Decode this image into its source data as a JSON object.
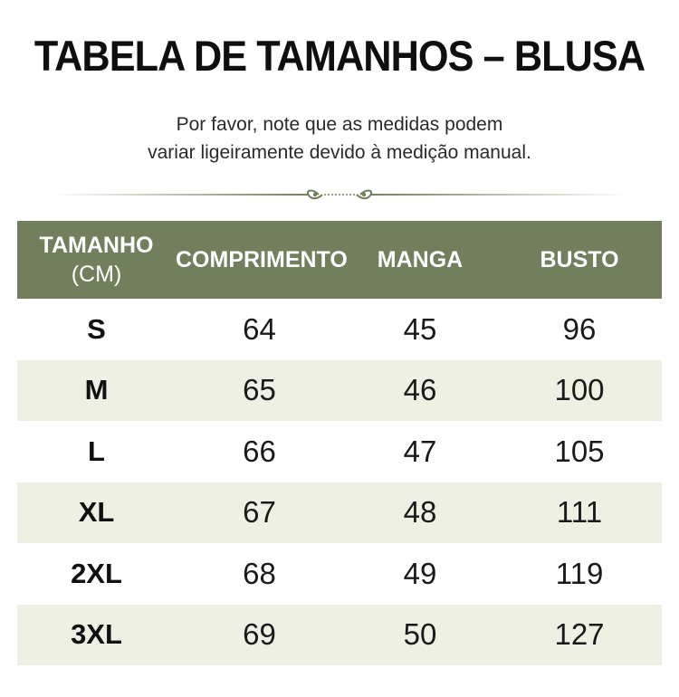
{
  "title": "TABELA DE TAMANHOS – BLUSA",
  "note": {
    "line1": "Por favor, note que as medidas podem",
    "line2": "variar ligeiramente devido à medição manual."
  },
  "colors": {
    "header_bg": "#737f5c",
    "stripe_bg": "#eff0e4",
    "divider": "#737f5c"
  },
  "table": {
    "headers": {
      "size_line1": "TAMANHO",
      "size_line2": "(CM)",
      "length": "COMPRIMENTO",
      "sleeve": "MANGA",
      "bust": "BUSTO"
    },
    "rows": [
      {
        "size": "S",
        "length": "64",
        "sleeve": "45",
        "bust": "96"
      },
      {
        "size": "M",
        "length": "65",
        "sleeve": "46",
        "bust": "100"
      },
      {
        "size": "L",
        "length": "66",
        "sleeve": "47",
        "bust": "105"
      },
      {
        "size": "XL",
        "length": "67",
        "sleeve": "48",
        "bust": "111"
      },
      {
        "size": "2XL",
        "length": "68",
        "sleeve": "49",
        "bust": "119"
      },
      {
        "size": "3XL",
        "length": "69",
        "sleeve": "50",
        "bust": "127"
      }
    ]
  }
}
